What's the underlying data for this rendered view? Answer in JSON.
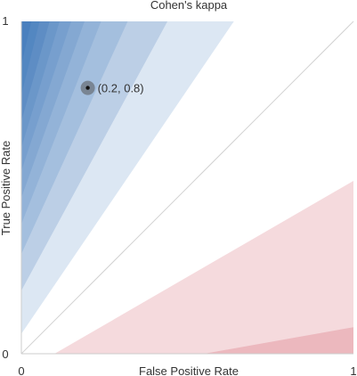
{
  "chart_data": {
    "type": "area",
    "title": "Cohen's kappa",
    "xlabel": "False Positive Rate",
    "ylabel": "True Positive Rate",
    "xlim": [
      0,
      1
    ],
    "ylim": [
      0,
      1
    ],
    "x_ticks": [
      "0",
      "1"
    ],
    "y_ticks": [
      "0",
      "1"
    ],
    "diagonal": {
      "from": [
        0,
        0
      ],
      "to": [
        1,
        1
      ]
    },
    "positive_region_colors": [
      "#dce7f3",
      "#bccfe6",
      "#a4bfde",
      "#93b3d8",
      "#84a8d2",
      "#779fce",
      "#6b97c9",
      "#5e8dc4",
      "#5387c1",
      "#4a80be"
    ],
    "negative_region_colors": [
      "#f5dadd",
      "#ecb8be"
    ],
    "positive_regions": [
      [
        [
          0,
          0.06
        ],
        [
          0,
          1
        ],
        [
          0.64,
          1
        ]
      ],
      [
        [
          0,
          0.19
        ],
        [
          0,
          1
        ],
        [
          0.44,
          1
        ]
      ],
      [
        [
          0,
          0.3
        ],
        [
          0,
          1
        ],
        [
          0.32,
          1
        ]
      ],
      [
        [
          0,
          0.39
        ],
        [
          0,
          1
        ],
        [
          0.24,
          1
        ]
      ],
      [
        [
          0,
          0.47
        ],
        [
          0,
          1
        ],
        [
          0.19,
          1
        ]
      ],
      [
        [
          0,
          0.55
        ],
        [
          0,
          1
        ],
        [
          0.15,
          1
        ]
      ],
      [
        [
          0,
          0.62
        ],
        [
          0,
          1
        ],
        [
          0.115,
          1
        ]
      ],
      [
        [
          0,
          0.7
        ],
        [
          0,
          1
        ],
        [
          0.085,
          1
        ]
      ],
      [
        [
          0,
          0.78
        ],
        [
          0,
          1
        ],
        [
          0.055,
          1
        ]
      ],
      [
        [
          0,
          0.87
        ],
        [
          0,
          1
        ],
        [
          0.03,
          1
        ]
      ]
    ],
    "negative_regions": [
      [
        [
          0.1,
          0
        ],
        [
          1,
          0
        ],
        [
          1,
          0.52
        ]
      ],
      [
        [
          0.55,
          0
        ],
        [
          1,
          0
        ],
        [
          1,
          0.08
        ]
      ]
    ],
    "point": {
      "x": 0.2,
      "y": 0.8,
      "label": "(0.2, 0.8)"
    }
  }
}
